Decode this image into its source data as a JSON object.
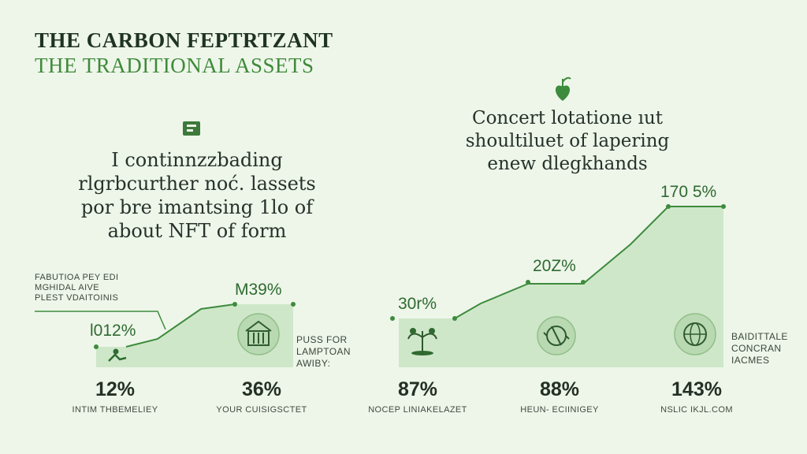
{
  "header": {
    "title_line1": "THE CARBON FEPTRTZANT",
    "title_line2": "THE TRADITIONAL ASSETS"
  },
  "left_paragraph": [
    "I continnzzbading",
    "rlgrbcurther noć. lassets",
    "por bre imantsing 1lo of",
    "about NFT of form"
  ],
  "right_paragraph": [
    "Concert lotatione ıut",
    "shoultiluet of lapering",
    "enew dlegkhands"
  ],
  "left_note": [
    "FABUTIOA PEY EDI",
    "MGHIDAL AIVE",
    "PLEST VDAITOINIS"
  ],
  "mid_note": [
    "PUSS FOR",
    "LAMPTOAN",
    "AWIBY:"
  ],
  "right_note": [
    "BAIDITTALE",
    "CONCRAN",
    "IACMES"
  ],
  "colors": {
    "accent_green": "#3f8a3a",
    "area_fill": "#c8e3c2",
    "line_green": "#3d8b3d",
    "background": "#eef6ea"
  },
  "icons": [
    "building-icon",
    "heart-leaf-icon",
    "plant-icon",
    "circular-arrows-icon",
    "globe-icon",
    "person-icon",
    "document-icon"
  ],
  "chart_data": [
    {
      "type": "area",
      "point_labels": [
        "l012%",
        "M39%"
      ],
      "stats": [
        {
          "value": "12%",
          "caption": "INTIM THBEMELIEY"
        },
        {
          "value": "36%",
          "caption": "YOUR CUISIGSCTET"
        }
      ]
    },
    {
      "type": "area",
      "point_labels": [
        "30r%",
        "20Z%",
        "170 5%"
      ],
      "stats": [
        {
          "value": "87%",
          "caption": "NOCEP LINIAKELAZET"
        },
        {
          "value": "88%",
          "caption": "HEUN- ECIINIGEY"
        },
        {
          "value": "143%",
          "caption": "NSLIC IKJL.COM"
        }
      ]
    }
  ]
}
